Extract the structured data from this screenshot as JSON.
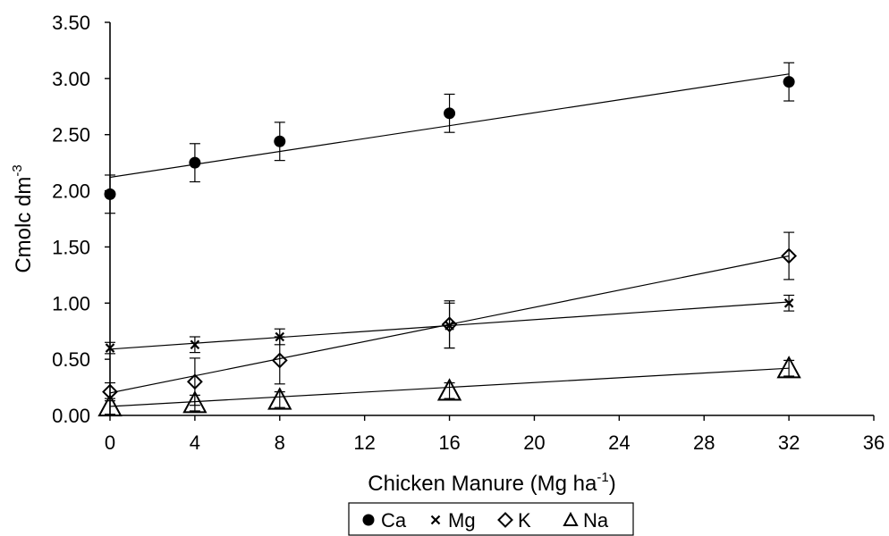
{
  "chart_data": {
    "type": "scatter",
    "xlabel": "Chicken Manure (Mg ha",
    "xlabel_sup": "-1",
    "xlabel_end": ")",
    "ylabel": "Cmolc dm",
    "ylabel_sup": "-3",
    "xlim": [
      0,
      36
    ],
    "ylim": [
      0,
      3.5
    ],
    "x_ticks": [
      "0",
      "4",
      "8",
      "12",
      "16",
      "20",
      "24",
      "28",
      "32",
      "36"
    ],
    "y_ticks": [
      "0.00",
      "0.50",
      "1.00",
      "1.50",
      "2.00",
      "2.50",
      "3.00",
      "3.50"
    ],
    "grid": false,
    "legend_position": "bottom",
    "series": [
      {
        "name": "Ca",
        "marker": "circle",
        "marker_symbol": "●",
        "x": [
          0,
          4,
          8,
          16,
          32
        ],
        "y": [
          1.97,
          2.25,
          2.44,
          2.69,
          2.97
        ],
        "error": [
          0.17,
          0.17,
          0.17,
          0.17,
          0.17
        ],
        "trend": [
          2.12,
          3.04
        ]
      },
      {
        "name": "Mg",
        "marker": "x",
        "marker_symbol": "×",
        "x": [
          0,
          4,
          8,
          16,
          32
        ],
        "y": [
          0.6,
          0.63,
          0.7,
          0.8,
          1.0
        ],
        "error": [
          0.05,
          0.07,
          0.07,
          0.2,
          0.07
        ],
        "trend": [
          0.59,
          1.01
        ]
      },
      {
        "name": "K",
        "marker": "diamond",
        "marker_symbol": "◇",
        "x": [
          0,
          4,
          8,
          16,
          32
        ],
        "y": [
          0.21,
          0.3,
          0.49,
          0.81,
          1.42
        ],
        "error": [
          0.08,
          0.21,
          0.21,
          0.21,
          0.21
        ],
        "trend": [
          0.2,
          1.42
        ]
      },
      {
        "name": "Na",
        "marker": "triangle",
        "marker_symbol": "Δ",
        "x": [
          0,
          4,
          8,
          16,
          32
        ],
        "y": [
          0.08,
          0.11,
          0.14,
          0.22,
          0.42
        ],
        "error": [
          0.07,
          0.07,
          0.07,
          0.07,
          0.07
        ],
        "trend": [
          0.08,
          0.42
        ]
      }
    ]
  }
}
